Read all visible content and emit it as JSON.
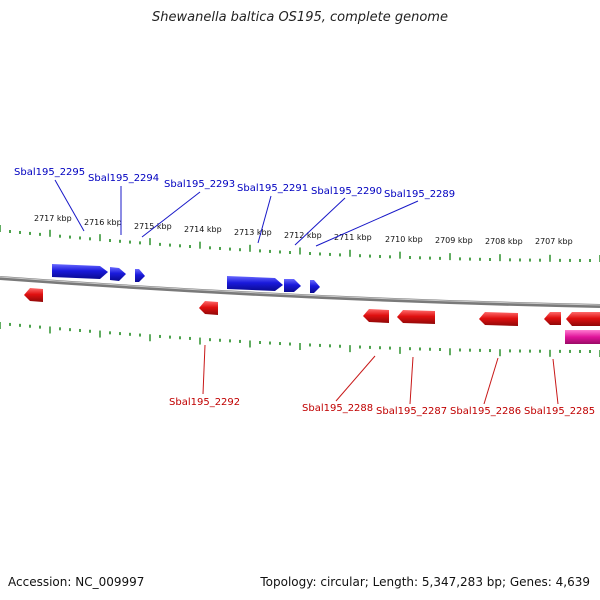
{
  "title": "Shewanella baltica OS195, complete genome",
  "footer": {
    "accession": "Accession: NC_009997",
    "summary": "Topology: circular; Length: 5,347,283 bp; Genes: 4,639"
  },
  "colors": {
    "forward_gene": "#1a1adc",
    "reverse_gene": "#e01010",
    "highlight_gene": "#e0149a",
    "tick": "#1f8a1f",
    "backbone": "#808080",
    "forward_label": "#0000c0",
    "reverse_label": "#c00000"
  },
  "scale_labels": [
    "2717 kbp",
    "2716 kbp",
    "2715 kbp",
    "2714 kbp",
    "2713 kbp",
    "2712 kbp",
    "2711 kbp",
    "2710 kbp",
    "2709 kbp",
    "2708 kbp",
    "2707 kbp"
  ],
  "forward_genes": [
    "Sbal195_2295",
    "Sbal195_2294",
    "Sbal195_2293",
    "Sbal195_2291",
    "Sbal195_2290",
    "Sbal195_2289"
  ],
  "reverse_genes": [
    "Sbal195_2292",
    "Sbal195_2288",
    "Sbal195_2287",
    "Sbal195_2286",
    "Sbal195_2285"
  ]
}
